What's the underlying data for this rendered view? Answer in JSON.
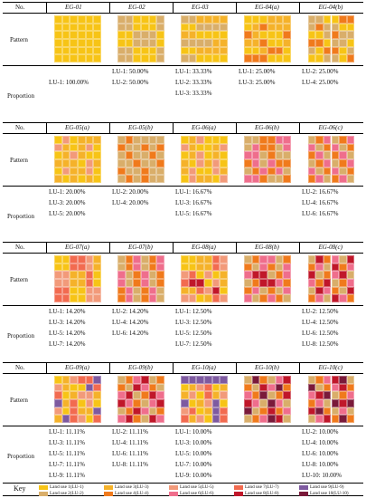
{
  "headers": {
    "no": "No.",
    "pattern": "Pattern",
    "proportion": "Proportion",
    "key": "Key"
  },
  "colors": {
    "LU1": "#F7C416",
    "LU2": "#D9AE6A",
    "LU3": "#F5B22A",
    "LU4": "#F07A1C",
    "LU5": "#F29A7A",
    "LU6": "#EF6E8C",
    "LU7": "#F26B50",
    "LU8": "#C0172A",
    "LU9": "#7E5AA0",
    "LU10": "#7A1A3A"
  },
  "sections": [
    {
      "ids": [
        "EG-01",
        "EG-02",
        "EG-03",
        "EG-04(a)",
        "EG-04(b)"
      ],
      "proportions": [
        [
          "LU-1: 100.00%"
        ],
        [
          "LU-1: 50.00%",
          "LU-2: 50.00%"
        ],
        [
          "LU-1: 33.33%",
          "LU-2: 33.33%",
          "LU-3: 33.33%"
        ],
        [
          "LU-1: 25.00%",
          "LU-3: 25.00%"
        ],
        [
          "LU-2: 25.00%",
          "LU-4: 25.00%"
        ]
      ]
    },
    {
      "ids": [
        "EG-05(a)",
        "EG-05(b)",
        "EG-06(a)",
        "EG-06(b)",
        "EG-06(c)"
      ],
      "proportions": [
        [
          "LU-1: 20.00%",
          "LU-3: 20.00%",
          "LU-5: 20.00%"
        ],
        [
          "LU-2: 20.00%",
          "LU-4: 20.00%"
        ],
        [
          "LU-1: 16.67%",
          "LU-3: 16.67%",
          "LU-5: 16.67%"
        ],
        [],
        [
          "LU-2: 16.67%",
          "LU-4: 16.67%",
          "LU-6: 16.67%"
        ]
      ]
    },
    {
      "ids": [
        "EG-07(a)",
        "EG-07(b)",
        "EG-08(a)",
        "EG-08(b)",
        "EG-08(c)"
      ],
      "proportions": [
        [
          "LU-1: 14.20%",
          "LU-3: 14.20%",
          "LU-5: 14.20%",
          "LU-7: 14.20%"
        ],
        [
          "LU-2: 14.20%",
          "LU-4: 14.20%",
          "LU-6: 14.20%"
        ],
        [
          "LU-1: 12.50%",
          "LU-3: 12.50%",
          "LU-5: 12.50%",
          "LU-7: 12.50%"
        ],
        [],
        [
          "LU-2: 12.50%",
          "LU-4: 12.50%",
          "LU-6: 12.50%",
          "LU-8: 12.50%"
        ]
      ]
    },
    {
      "ids": [
        "EG-09(a)",
        "EG-09(b)",
        "EG-10(a)",
        "EG-10(b)",
        "EG-10(c)"
      ],
      "proportions": [
        [
          "LU-1: 11.11%",
          "LU-3: 11.11%",
          "LU-5: 11.11%",
          "LU-7: 11.11%",
          "LU-9: 11.11%"
        ],
        [
          "LU-2: 11.11%",
          "LU-4: 11.11%",
          "LU-6: 11.11%",
          "LU-8: 11.11%"
        ],
        [
          "LU-1: 10.00%",
          "LU-3: 10.00%",
          "LU-5: 10.00%",
          "LU-7: 10.00%",
          "LU-9: 10.00%"
        ],
        [],
        [
          "LU-2: 10.00%",
          "LU-4: 10.00%",
          "LU-6: 10.00%",
          "LU-8: 10.00%",
          "LU-10: 10.00%"
        ]
      ]
    }
  ],
  "key": [
    {
      "label": "Land use 1(LU-1)",
      "color": "#F7C416"
    },
    {
      "label": "Land use 3(LU-3)",
      "color": "#F5B22A"
    },
    {
      "label": "Land use 5(LU-5)",
      "color": "#F29A7A"
    },
    {
      "label": "Land use 7(LU-7)",
      "color": "#F26B50"
    },
    {
      "label": "Land use 9(LU-9)",
      "color": "#7E5AA0"
    },
    {
      "label": "Land use 2(LU-2)",
      "color": "#D9AE6A"
    },
    {
      "label": "Land use 4(LU-4)",
      "color": "#F07A1C"
    },
    {
      "label": "Land use 6(LU-6)",
      "color": "#EF6E8C"
    },
    {
      "label": "Land use 8(LU-8)",
      "color": "#C0172A"
    },
    {
      "label": "Land use 10(LU-10)",
      "color": "#7A1A3A"
    }
  ]
}
